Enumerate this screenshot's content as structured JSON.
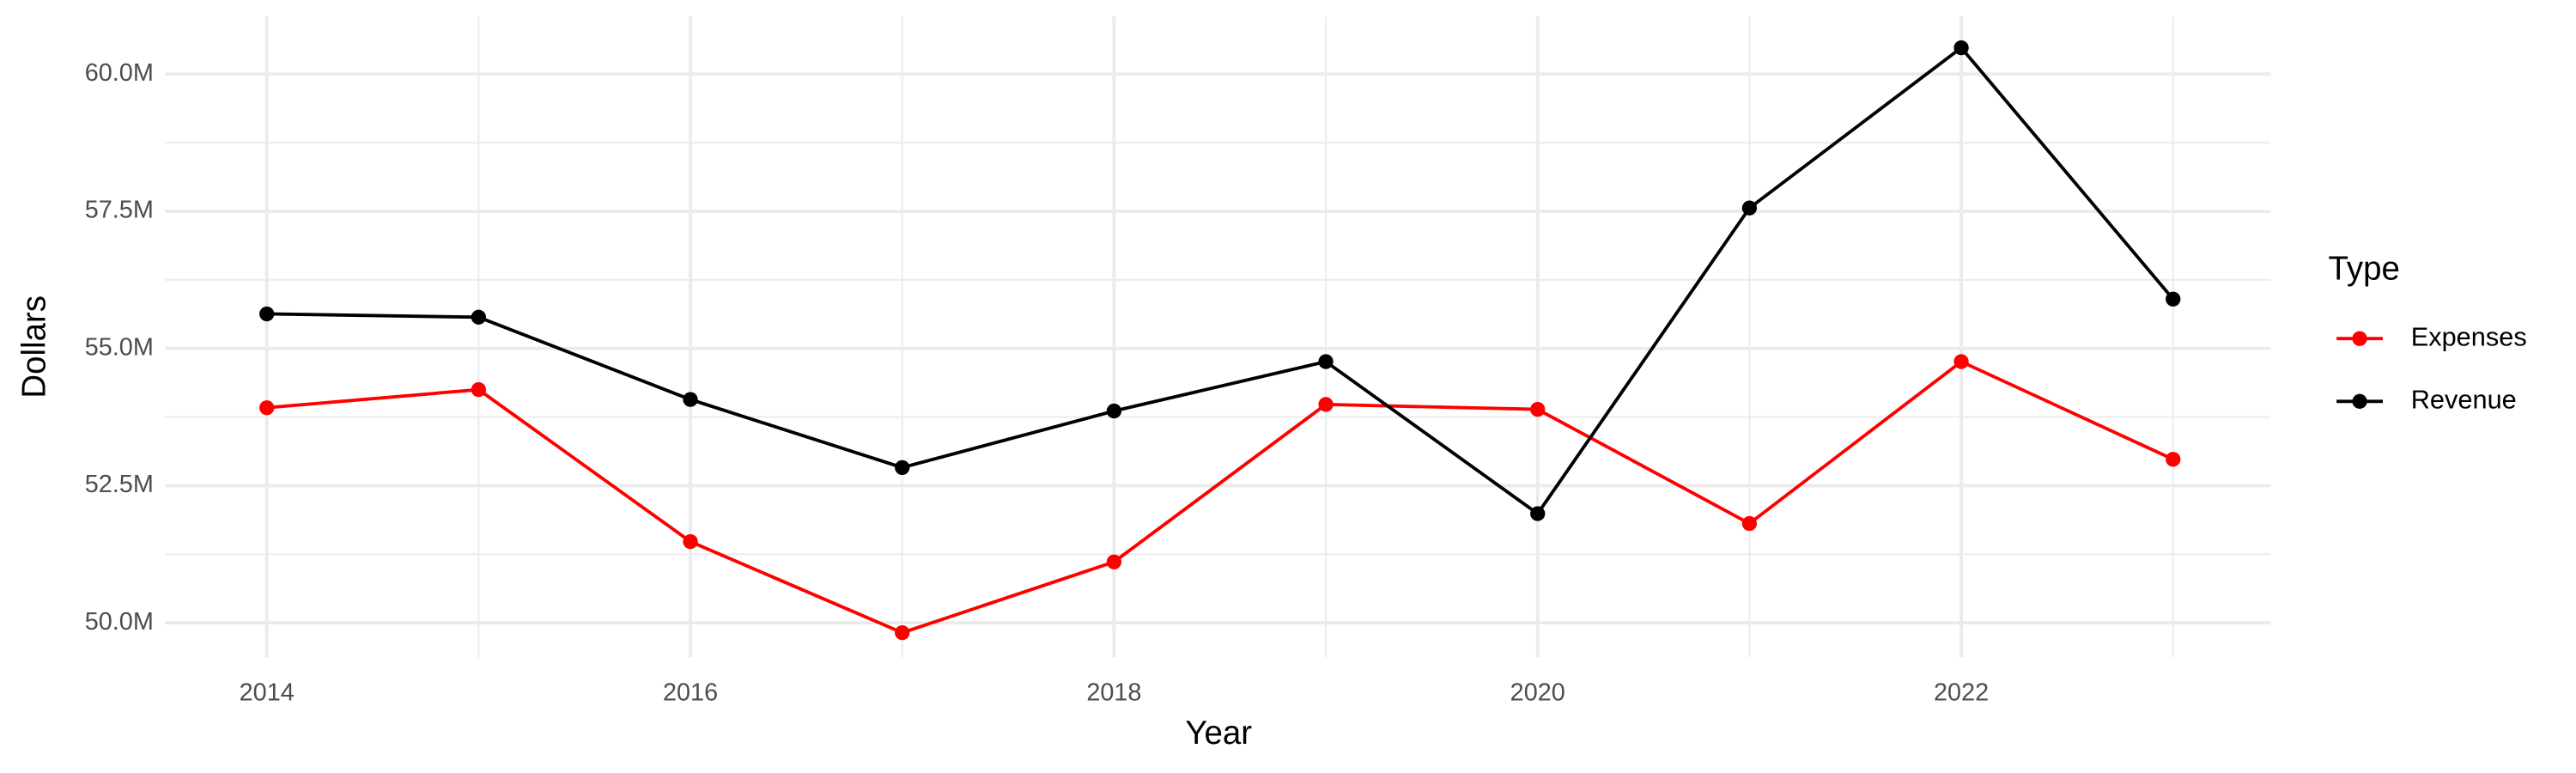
{
  "chart_data": {
    "type": "line",
    "x_label": "Year",
    "y_label": "Dollars",
    "legend_title": "Type",
    "legend_position": "right",
    "grid": true,
    "x": [
      2014,
      2015,
      2016,
      2017,
      2018,
      2019,
      2020,
      2021,
      2022,
      2023
    ],
    "xlim": [
      2013.52,
      2023.46
    ],
    "xticks": [
      2014,
      2016,
      2018,
      2020,
      2022
    ],
    "ylim": [
      49370000,
      61050000
    ],
    "yticks": [
      {
        "value": 50000000,
        "label": "50.0M"
      },
      {
        "value": 52500000,
        "label": "52.5M"
      },
      {
        "value": 55000000,
        "label": "55.0M"
      },
      {
        "value": 57500000,
        "label": "57.5M"
      },
      {
        "value": 60000000,
        "label": "60.0M"
      }
    ],
    "series": [
      {
        "name": "Expenses",
        "color": "#ff0000",
        "values": [
          53920000,
          54250000,
          51480000,
          49820000,
          51110000,
          53980000,
          53890000,
          51810000,
          54760000,
          52980000
        ]
      },
      {
        "name": "Revenue",
        "color": "#000000",
        "values": [
          55630000,
          55570000,
          54070000,
          52830000,
          53860000,
          54760000,
          51990000,
          57560000,
          60480000,
          55900000
        ]
      }
    ]
  }
}
